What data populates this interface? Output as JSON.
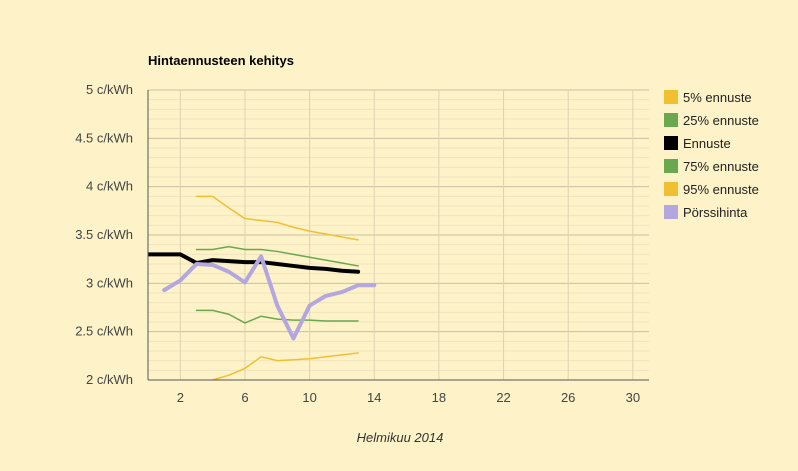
{
  "chart_data": {
    "type": "line",
    "title": "Hintaennusteen kehitys",
    "xlabel": "Helmikuu 2014",
    "ylabel": "",
    "xlim": [
      0,
      31
    ],
    "ylim": [
      2,
      5
    ],
    "x_ticks": [
      2,
      6,
      10,
      14,
      18,
      22,
      26,
      30
    ],
    "y_ticks": [
      {
        "value": 2,
        "label": "2 c/kWh"
      },
      {
        "value": 2.5,
        "label": "2.5 c/kWh"
      },
      {
        "value": 3,
        "label": "3 c/kWh"
      },
      {
        "value": 3.5,
        "label": "3.5 c/kWh"
      },
      {
        "value": 4,
        "label": "4 c/kWh"
      },
      {
        "value": 4.5,
        "label": "4.5 c/kWh"
      },
      {
        "value": 5,
        "label": "5 c/kWh"
      }
    ],
    "grid": true,
    "legend_position": "right",
    "series": [
      {
        "name": "5% ennuste",
        "color": "#f0c030",
        "width": 1.5,
        "points": [
          [
            3,
            3.9
          ],
          [
            4,
            3.9
          ],
          [
            5,
            3.78
          ],
          [
            6,
            3.67
          ],
          [
            7,
            3.65
          ],
          [
            8,
            3.63
          ],
          [
            9,
            3.58
          ],
          [
            10,
            3.54
          ],
          [
            11,
            3.51
          ],
          [
            12,
            3.48
          ],
          [
            13,
            3.45
          ]
        ]
      },
      {
        "name": "25% ennuste",
        "color": "#6aa84f",
        "width": 1.5,
        "points": [
          [
            3,
            3.35
          ],
          [
            4,
            3.35
          ],
          [
            5,
            3.38
          ],
          [
            6,
            3.35
          ],
          [
            7,
            3.35
          ],
          [
            8,
            3.33
          ],
          [
            9,
            3.3
          ],
          [
            10,
            3.27
          ],
          [
            11,
            3.24
          ],
          [
            12,
            3.21
          ],
          [
            13,
            3.18
          ]
        ]
      },
      {
        "name": "Ennuste",
        "color": "#000000",
        "width": 4,
        "points": [
          [
            0,
            3.3
          ],
          [
            1,
            3.3
          ],
          [
            2,
            3.3
          ],
          [
            3,
            3.21
          ],
          [
            4,
            3.24
          ],
          [
            5,
            3.23
          ],
          [
            6,
            3.22
          ],
          [
            7,
            3.22
          ],
          [
            8,
            3.2
          ],
          [
            9,
            3.18
          ],
          [
            10,
            3.16
          ],
          [
            11,
            3.15
          ],
          [
            12,
            3.13
          ],
          [
            13,
            3.12
          ]
        ]
      },
      {
        "name": "75% ennuste",
        "color": "#6aa84f",
        "width": 1.5,
        "points": [
          [
            3,
            2.72
          ],
          [
            4,
            2.72
          ],
          [
            5,
            2.68
          ],
          [
            6,
            2.59
          ],
          [
            7,
            2.66
          ],
          [
            8,
            2.63
          ],
          [
            9,
            2.62
          ],
          [
            10,
            2.62
          ],
          [
            11,
            2.61
          ],
          [
            12,
            2.61
          ],
          [
            13,
            2.61
          ]
        ]
      },
      {
        "name": "95% ennuste",
        "color": "#f0c030",
        "width": 1.5,
        "points": [
          [
            4,
            2
          ],
          [
            5,
            2.05
          ],
          [
            6,
            2.12
          ],
          [
            7,
            2.24
          ],
          [
            8,
            2.2
          ],
          [
            9,
            2.21
          ],
          [
            10,
            2.22
          ],
          [
            11,
            2.24
          ],
          [
            12,
            2.26
          ],
          [
            13,
            2.28
          ]
        ]
      },
      {
        "name": "Pörssihinta",
        "color": "#b4a7e0",
        "width": 4,
        "points": [
          [
            1,
            2.93
          ],
          [
            2,
            3.03
          ],
          [
            3,
            3.2
          ],
          [
            4,
            3.19
          ],
          [
            5,
            3.12
          ],
          [
            6,
            3.01
          ],
          [
            7,
            3.28
          ],
          [
            8,
            2.77
          ],
          [
            9,
            2.43
          ],
          [
            10,
            2.77
          ],
          [
            11,
            2.87
          ],
          [
            12,
            2.91
          ],
          [
            13,
            2.98
          ],
          [
            14,
            2.98
          ]
        ]
      }
    ]
  }
}
